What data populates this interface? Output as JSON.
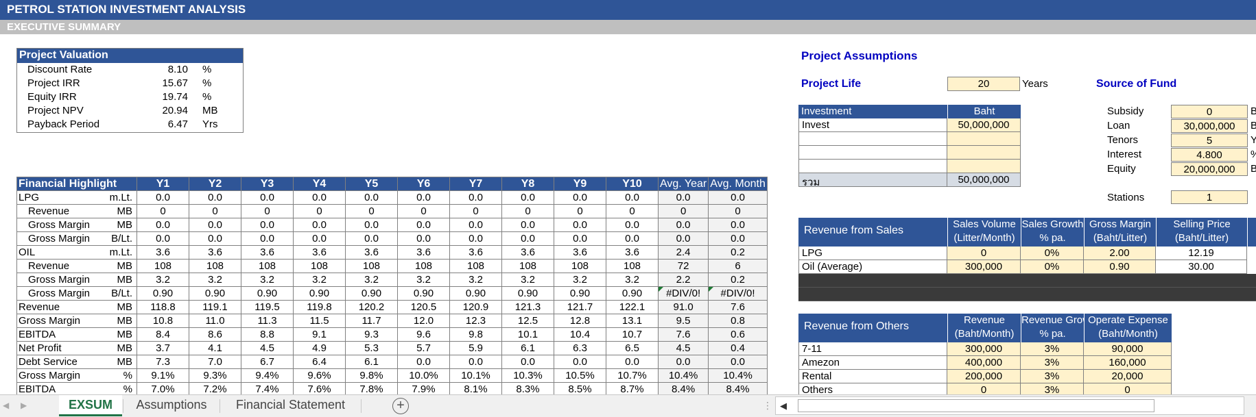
{
  "title": "PETROL STATION INVESTMENT ANALYSIS",
  "subtitle": "EXECUTIVE SUMMARY",
  "valuation": {
    "title": "Project Valuation",
    "rows": [
      {
        "label": "Discount Rate",
        "value": "8.10",
        "unit": "%"
      },
      {
        "label": "Project IRR",
        "value": "15.67",
        "unit": "%"
      },
      {
        "label": "Equity IRR",
        "value": "19.74",
        "unit": "%"
      },
      {
        "label": "Project NPV",
        "value": "20.94",
        "unit": "MB"
      },
      {
        "label": "Payback Period",
        "value": "6.47",
        "unit": "Yrs"
      }
    ]
  },
  "financial": {
    "headers": [
      "Financial Highlight",
      "Y1",
      "Y2",
      "Y3",
      "Y4",
      "Y5",
      "Y6",
      "Y7",
      "Y8",
      "Y9",
      "Y10",
      "Avg. Year",
      "Avg. Month"
    ],
    "rows": [
      {
        "label": "LPG",
        "unit": "m.Lt.",
        "indent": false,
        "values": [
          "0.0",
          "0.0",
          "0.0",
          "0.0",
          "0.0",
          "0.0",
          "0.0",
          "0.0",
          "0.0",
          "0.0",
          "0.0",
          "0.0"
        ]
      },
      {
        "label": "Revenue",
        "unit": "MB",
        "indent": true,
        "values": [
          "0",
          "0",
          "0",
          "0",
          "0",
          "0",
          "0",
          "0",
          "0",
          "0",
          "0",
          "0"
        ]
      },
      {
        "label": "Gross Margin",
        "unit": "MB",
        "indent": true,
        "values": [
          "0.0",
          "0.0",
          "0.0",
          "0.0",
          "0.0",
          "0.0",
          "0.0",
          "0.0",
          "0.0",
          "0.0",
          "0.0",
          "0.0"
        ]
      },
      {
        "label": "Gross Margin",
        "unit": "B/Lt.",
        "indent": true,
        "values": [
          "0.0",
          "0.0",
          "0.0",
          "0.0",
          "0.0",
          "0.0",
          "0.0",
          "0.0",
          "0.0",
          "0.0",
          "0.0",
          "0.0"
        ]
      },
      {
        "label": "OIL",
        "unit": "m.Lt.",
        "indent": false,
        "values": [
          "3.6",
          "3.6",
          "3.6",
          "3.6",
          "3.6",
          "3.6",
          "3.6",
          "3.6",
          "3.6",
          "3.6",
          "2.4",
          "0.2"
        ]
      },
      {
        "label": "Revenue",
        "unit": "MB",
        "indent": true,
        "values": [
          "108",
          "108",
          "108",
          "108",
          "108",
          "108",
          "108",
          "108",
          "108",
          "108",
          "72",
          "6"
        ]
      },
      {
        "label": "Gross Margin",
        "unit": "MB",
        "indent": true,
        "values": [
          "3.2",
          "3.2",
          "3.2",
          "3.2",
          "3.2",
          "3.2",
          "3.2",
          "3.2",
          "3.2",
          "3.2",
          "2.2",
          "0.2"
        ]
      },
      {
        "label": "Gross Margin",
        "unit": "B/Lt.",
        "indent": true,
        "values": [
          "0.90",
          "0.90",
          "0.90",
          "0.90",
          "0.90",
          "0.90",
          "0.90",
          "0.90",
          "0.90",
          "0.90",
          "#DIV/0!",
          "#DIV/0!"
        ]
      },
      {
        "label": "Revenue",
        "unit": "MB",
        "indent": false,
        "values": [
          "118.8",
          "119.1",
          "119.5",
          "119.8",
          "120.2",
          "120.5",
          "120.9",
          "121.3",
          "121.7",
          "122.1",
          "91.0",
          "7.6"
        ]
      },
      {
        "label": "Gross Margin",
        "unit": "MB",
        "indent": false,
        "values": [
          "10.8",
          "11.0",
          "11.3",
          "11.5",
          "11.7",
          "12.0",
          "12.3",
          "12.5",
          "12.8",
          "13.1",
          "9.5",
          "0.8"
        ]
      },
      {
        "label": "EBITDA",
        "unit": "MB",
        "indent": false,
        "values": [
          "8.4",
          "8.6",
          "8.8",
          "9.1",
          "9.3",
          "9.6",
          "9.8",
          "10.1",
          "10.4",
          "10.7",
          "7.6",
          "0.6"
        ]
      },
      {
        "label": "Net Profit",
        "unit": "MB",
        "indent": false,
        "values": [
          "3.7",
          "4.1",
          "4.5",
          "4.9",
          "5.3",
          "5.7",
          "5.9",
          "6.1",
          "6.3",
          "6.5",
          "4.5",
          "0.4"
        ]
      },
      {
        "label": "Debt Service",
        "unit": "MB",
        "indent": false,
        "values": [
          "7.3",
          "7.0",
          "6.7",
          "6.4",
          "6.1",
          "0.0",
          "0.0",
          "0.0",
          "0.0",
          "0.0",
          "0.0",
          "0.0"
        ]
      },
      {
        "label": "Gross Margin",
        "unit": "%",
        "indent": false,
        "values": [
          "9.1%",
          "9.3%",
          "9.4%",
          "9.6%",
          "9.8%",
          "10.0%",
          "10.1%",
          "10.3%",
          "10.5%",
          "10.7%",
          "10.4%",
          "10.4%"
        ]
      },
      {
        "label": "EBITDA",
        "unit": "%",
        "indent": false,
        "values": [
          "7.0%",
          "7.2%",
          "7.4%",
          "7.6%",
          "7.8%",
          "7.9%",
          "8.1%",
          "8.3%",
          "8.5%",
          "8.7%",
          "8.4%",
          "8.4%"
        ]
      }
    ]
  },
  "assumptions": {
    "title": "Project Assumptions",
    "project_life_label": "Project Life",
    "project_life_value": "20",
    "project_life_unit": "Years",
    "source_of_fund_label": "Source of Fund",
    "investment": {
      "header_label": "Investment",
      "header_value": "Baht",
      "rows": [
        {
          "label": "Invest",
          "value": "50,000,000"
        },
        {
          "label": "",
          "value": ""
        },
        {
          "label": "",
          "value": ""
        },
        {
          "label": "",
          "value": ""
        }
      ],
      "total_label": "รวม",
      "total_value": "50,000,000"
    },
    "fund": [
      {
        "label": "Subsidy",
        "value": "0",
        "unit": "B"
      },
      {
        "label": "Loan",
        "value": "30,000,000",
        "unit": "B"
      },
      {
        "label": "Tenors",
        "value": "5",
        "unit": "Y"
      },
      {
        "label": "Interest",
        "value": "4.800",
        "unit": "%"
      },
      {
        "label": "Equity",
        "value": "20,000,000",
        "unit": "B"
      }
    ],
    "stations_label": "Stations",
    "stations_value": "1"
  },
  "revenue_sales": {
    "header_label": "Revenue from Sales",
    "columns": [
      {
        "line1": "Sales Volume",
        "line2": "(Litter/Month)"
      },
      {
        "line1": "Sales Growth",
        "line2": "% pa."
      },
      {
        "line1": "Gross Margin",
        "line2": "(Baht/Litter)"
      },
      {
        "line1": "Selling Price",
        "line2": "(Baht/Litter)"
      }
    ],
    "rows": [
      {
        "label": "LPG",
        "values": [
          "0",
          "0%",
          "2.00",
          "12.19"
        ]
      },
      {
        "label": "Oil (Average)",
        "values": [
          "300,000",
          "0%",
          "0.90",
          "30.00"
        ]
      }
    ]
  },
  "revenue_others": {
    "header_label": "Revenue from Others",
    "columns": [
      {
        "line1": "Revenue",
        "line2": "(Baht/Month)"
      },
      {
        "line1": "Revenue Growth",
        "line2": "% pa."
      },
      {
        "line1": "Operate Expense",
        "line2": "(Baht/Month)"
      }
    ],
    "rows": [
      {
        "label": "7-11",
        "values": [
          "300,000",
          "3%",
          "90,000"
        ]
      },
      {
        "label": "Amezon",
        "values": [
          "400,000",
          "3%",
          "160,000"
        ]
      },
      {
        "label": "Rental",
        "values": [
          "200,000",
          "3%",
          "20,000"
        ]
      },
      {
        "label": "Others",
        "values": [
          "0",
          "3%",
          "0"
        ]
      }
    ]
  },
  "tabs": [
    {
      "label": "EXSUM",
      "active": true
    },
    {
      "label": "Assumptions",
      "active": false
    },
    {
      "label": "Financial Statement",
      "active": false
    }
  ],
  "add_sheet_icon": "plus-circle-icon",
  "colors": {
    "header_blue": "#2f5597",
    "input_beige": "#fff2cc",
    "accent_green": "#217346"
  }
}
